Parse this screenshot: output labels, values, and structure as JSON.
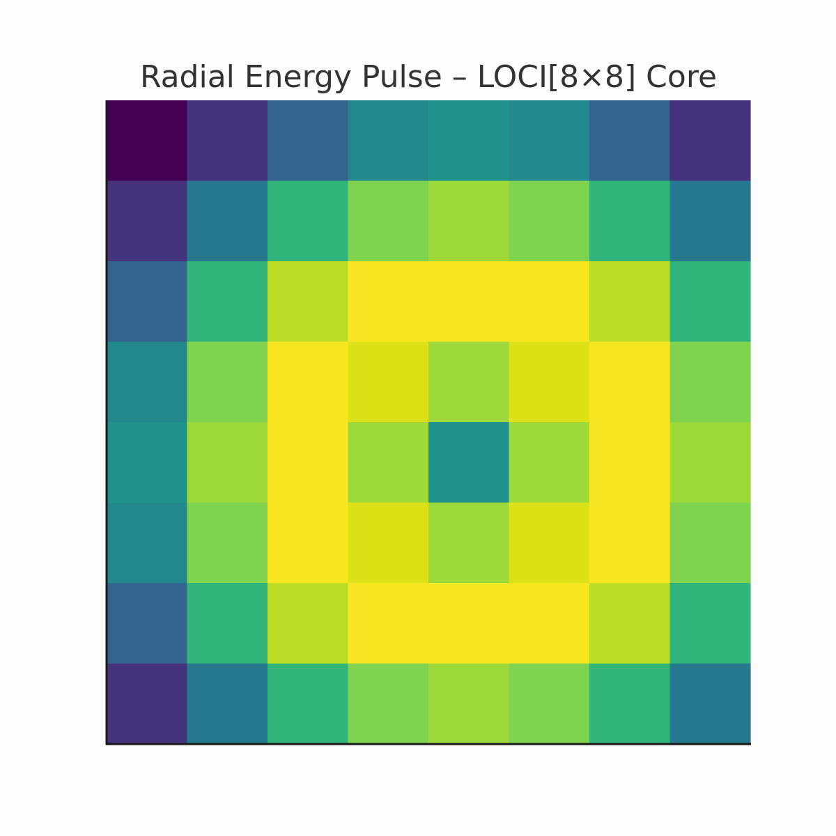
{
  "chart_data": {
    "type": "heatmap",
    "title": "Radial Energy Pulse – LOCI[8×8] Core",
    "xlabel": "",
    "ylabel": "",
    "rows": 8,
    "cols": 8,
    "colormap": "viridis",
    "value_range": [
      0.0,
      1.0
    ],
    "grid": false,
    "values": [
      [
        0.0,
        0.15,
        0.3,
        0.45,
        0.5,
        0.45,
        0.3,
        0.15
      ],
      [
        0.15,
        0.42,
        0.68,
        0.8,
        0.85,
        0.8,
        0.68,
        0.42
      ],
      [
        0.3,
        0.68,
        0.9,
        1.0,
        1.0,
        1.0,
        0.9,
        0.68
      ],
      [
        0.45,
        0.8,
        1.0,
        0.95,
        0.85,
        0.95,
        1.0,
        0.8
      ],
      [
        0.5,
        0.85,
        1.0,
        0.85,
        0.5,
        0.85,
        1.0,
        0.85
      ],
      [
        0.45,
        0.8,
        1.0,
        0.95,
        0.85,
        0.95,
        1.0,
        0.8
      ],
      [
        0.3,
        0.68,
        0.9,
        1.0,
        1.0,
        1.0,
        0.9,
        0.68
      ],
      [
        0.15,
        0.42,
        0.68,
        0.8,
        0.85,
        0.8,
        0.68,
        0.42
      ]
    ]
  },
  "colors": {
    "background": "#fdfdfd",
    "axis_spine": "#1a1a1a",
    "title_text": "#333333"
  }
}
